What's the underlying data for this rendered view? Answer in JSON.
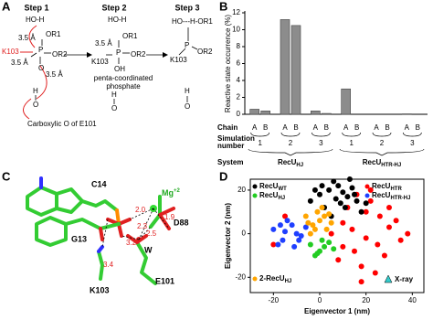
{
  "panel_a": {
    "label": "A",
    "steps": [
      "Step 1",
      "Step 2",
      "Step 3"
    ],
    "texts": [
      "HO-H",
      "OR1",
      "P",
      "OR2",
      "O",
      "K103",
      "3.5 Å",
      "3.5 Å",
      "3.5 Å",
      "H",
      "O",
      "Carboxylic O of E101",
      "HO-H",
      "OR1",
      "3.5 Å",
      "P",
      "OR2",
      "K103",
      "OH",
      "penta-coordinated",
      "phosphate",
      "H",
      "O",
      "HO---H-OR1",
      "P",
      "OR2",
      "K103",
      "H",
      "O"
    ]
  },
  "panel_c": {
    "label": "C",
    "residues": [
      "C14",
      "G13",
      "D88",
      "K103",
      "E101",
      "W"
    ],
    "ion": "Mg",
    "ion_charge": "+2",
    "distances": [
      "2.0",
      "1.9",
      "2.3",
      "3.2",
      "2.5",
      "3.4"
    ]
  },
  "chart_data": [
    {
      "type": "bar",
      "label": "B",
      "y_label": "Reactive state occurrence (%)",
      "categories": [
        "A",
        "B",
        "A",
        "B",
        "A",
        "B",
        "A",
        "B",
        "A",
        "B",
        "A",
        "B"
      ],
      "values": [
        0.6,
        0.4,
        11.2,
        10.5,
        0.4,
        0.1,
        3.0,
        0,
        0,
        0,
        0.05,
        0
      ],
      "color": "#8c8c8c",
      "ylim": [
        0,
        12
      ],
      "yticks": [
        0,
        2,
        4,
        6,
        8,
        10,
        12
      ],
      "simulation_numbers": [
        "1",
        "2",
        "3",
        "1",
        "2",
        "3"
      ],
      "systems": [
        {
          "name": "RecU",
          "sub": "HJ"
        },
        {
          "name": "RecU",
          "sub": "HTR-HJ"
        }
      ],
      "row_labels": [
        "Chain",
        "Simulation",
        "number",
        "System"
      ]
    },
    {
      "type": "scatter",
      "label": "D",
      "x_label": "Eigenvector 1 (nm)",
      "y_label": "Eigenvector 2 (nm)",
      "xlim": [
        -30,
        45
      ],
      "ylim": [
        -27,
        25
      ],
      "xticks": [
        -20,
        0,
        20,
        40
      ],
      "yticks": [
        -20,
        0,
        20
      ],
      "series": [
        {
          "name": "RecU",
          "name_sub": "HTR",
          "color": "#ff0000",
          "x": [
            5,
            10,
            15,
            20,
            25,
            30,
            35,
            8,
            12,
            18,
            22,
            28,
            33,
            14,
            20,
            26,
            10,
            16,
            24,
            30,
            -20,
            -15,
            38,
            18,
            22
          ],
          "y": [
            0,
            5,
            -8,
            10,
            -5,
            3,
            -3,
            -12,
            12,
            -15,
            15,
            -10,
            6,
            2,
            -2,
            8,
            -6,
            18,
            -18,
            12,
            -5,
            8,
            0,
            -22,
            20
          ]
        },
        {
          "name": "RecU",
          "name_sub": "WT",
          "color": "#000000",
          "x": [
            0,
            4,
            8,
            12,
            16,
            20,
            2,
            6,
            10,
            14,
            18,
            -4,
            5,
            9,
            13,
            1,
            7,
            11,
            -2,
            15
          ],
          "y": [
            18,
            20,
            22,
            17,
            15,
            14,
            12,
            24,
            19,
            21,
            10,
            15,
            8,
            14,
            25,
            22,
            16,
            12,
            20,
            18
          ]
        },
        {
          "name": "RecU",
          "name_sub": "HTR-HJ",
          "color": "#1f3fff",
          "x": [
            -20,
            -16,
            -12,
            -8,
            -18,
            -14,
            -10,
            -6,
            -15,
            -11,
            -17,
            -9
          ],
          "y": [
            2,
            -3,
            4,
            -1,
            -5,
            6,
            0,
            3,
            1,
            -6,
            4,
            -3
          ]
        },
        {
          "name": "2-RecU",
          "name_sub": "HJ",
          "color": "#ffa500",
          "x": [
            -6,
            -3,
            0,
            3,
            -4,
            -1,
            2,
            5,
            -2,
            1,
            4,
            -5
          ],
          "y": [
            8,
            4,
            6,
            2,
            0,
            10,
            8,
            5,
            2,
            12,
            9,
            5
          ]
        },
        {
          "name": "RecU",
          "name_sub": "HJ",
          "color": "#22cc22",
          "x": [
            -4,
            0,
            4,
            -2,
            2,
            6,
            1,
            -1
          ],
          "y": [
            -5,
            -8,
            -4,
            -10,
            -6,
            -7,
            -3,
            -9
          ]
        }
      ],
      "reference": {
        "name": "X-ray",
        "color": "#33cccc"
      }
    }
  ]
}
